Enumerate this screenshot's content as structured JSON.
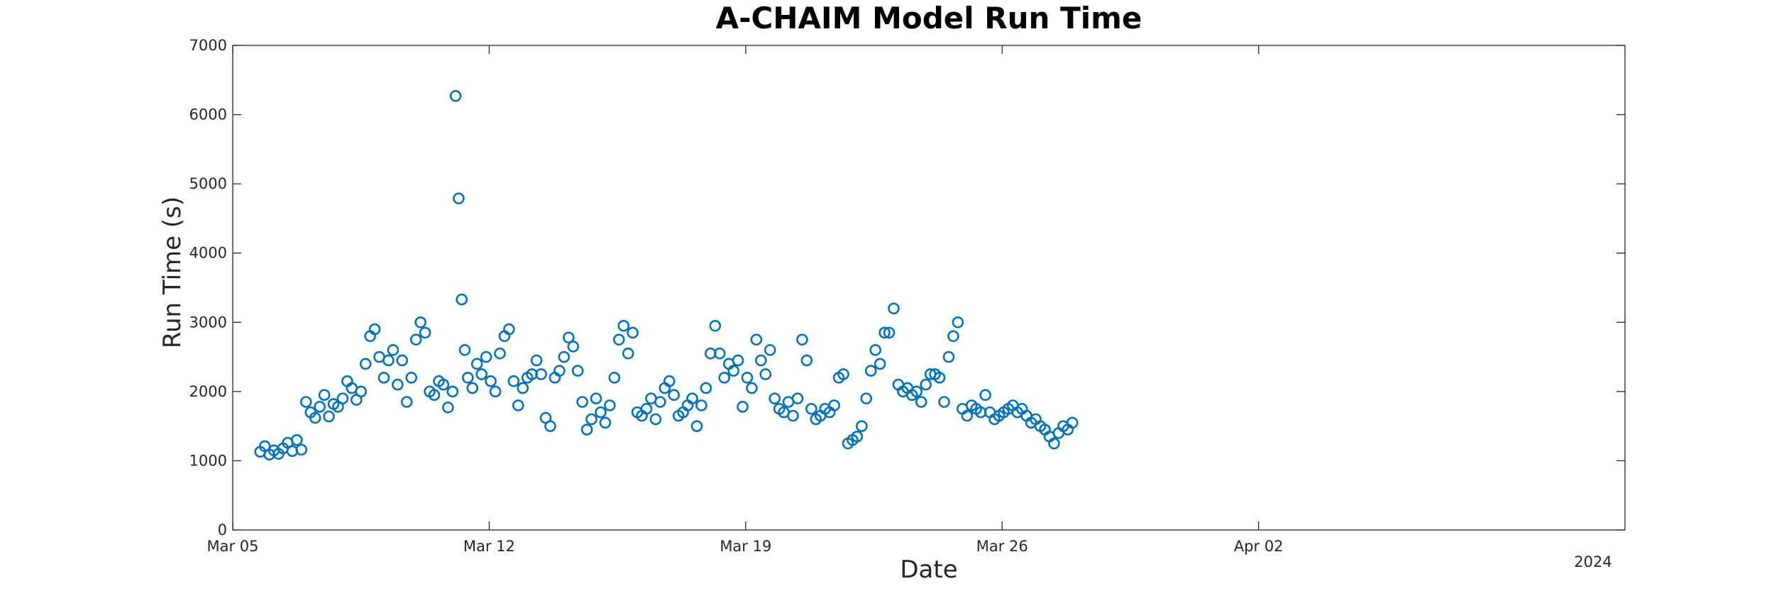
{
  "chart_data": {
    "type": "scatter",
    "title": "A-CHAIM Model Run Time",
    "xlabel": "Date",
    "ylabel": "Run Time (s)",
    "x_axis_secondary_label": "2024",
    "x_axis_type": "date",
    "xlim": [
      "2024-03-05",
      "2024-04-12"
    ],
    "ylim": [
      0,
      7000
    ],
    "x_ticks": [
      {
        "date": "2024-03-05",
        "label": "Mar 05"
      },
      {
        "date": "2024-03-12",
        "label": "Mar 12"
      },
      {
        "date": "2024-03-19",
        "label": "Mar 19"
      },
      {
        "date": "2024-03-26",
        "label": "Mar 26"
      },
      {
        "date": "2024-04-02",
        "label": "Apr 02"
      }
    ],
    "y_ticks": [
      0,
      1000,
      2000,
      3000,
      4000,
      5000,
      6000,
      7000
    ],
    "grid": false,
    "marker": "open-circle",
    "color": "#0072BD",
    "series": [
      {
        "points": [
          [
            "2024-03-05 18:00",
            1130
          ],
          [
            "2024-03-05 21:00",
            1210
          ],
          [
            "2024-03-06 00:00",
            1090
          ],
          [
            "2024-03-06 03:00",
            1150
          ],
          [
            "2024-03-06 06:00",
            1100
          ],
          [
            "2024-03-06 09:00",
            1180
          ],
          [
            "2024-03-06 12:00",
            1260
          ],
          [
            "2024-03-06 15:00",
            1140
          ],
          [
            "2024-03-06 18:00",
            1300
          ],
          [
            "2024-03-06 21:00",
            1160
          ],
          [
            "2024-03-07 00:00",
            1850
          ],
          [
            "2024-03-07 03:00",
            1700
          ],
          [
            "2024-03-07 06:00",
            1620
          ],
          [
            "2024-03-07 09:00",
            1780
          ],
          [
            "2024-03-07 12:00",
            1950
          ],
          [
            "2024-03-07 15:00",
            1640
          ],
          [
            "2024-03-07 18:00",
            1820
          ],
          [
            "2024-03-07 21:00",
            1780
          ],
          [
            "2024-03-08 00:00",
            1900
          ],
          [
            "2024-03-08 03:00",
            2150
          ],
          [
            "2024-03-08 06:00",
            2050
          ],
          [
            "2024-03-08 09:00",
            1880
          ],
          [
            "2024-03-08 12:00",
            2000
          ],
          [
            "2024-03-08 15:00",
            2400
          ],
          [
            "2024-03-08 18:00",
            2800
          ],
          [
            "2024-03-08 21:00",
            2900
          ],
          [
            "2024-03-09 00:00",
            2500
          ],
          [
            "2024-03-09 03:00",
            2200
          ],
          [
            "2024-03-09 06:00",
            2450
          ],
          [
            "2024-03-09 09:00",
            2600
          ],
          [
            "2024-03-09 12:00",
            2100
          ],
          [
            "2024-03-09 15:00",
            2450
          ],
          [
            "2024-03-09 18:00",
            1850
          ],
          [
            "2024-03-09 21:00",
            2200
          ],
          [
            "2024-03-10 00:00",
            2750
          ],
          [
            "2024-03-10 03:00",
            3000
          ],
          [
            "2024-03-10 06:00",
            2850
          ],
          [
            "2024-03-10 09:00",
            2000
          ],
          [
            "2024-03-10 12:00",
            1950
          ],
          [
            "2024-03-10 15:00",
            2150
          ],
          [
            "2024-03-10 18:00",
            2100
          ],
          [
            "2024-03-10 21:00",
            1770
          ],
          [
            "2024-03-11 00:00",
            2000
          ],
          [
            "2024-03-11 02:00",
            6270
          ],
          [
            "2024-03-11 04:00",
            4790
          ],
          [
            "2024-03-11 06:00",
            3330
          ],
          [
            "2024-03-11 08:00",
            2600
          ],
          [
            "2024-03-11 10:00",
            2200
          ],
          [
            "2024-03-11 13:00",
            2050
          ],
          [
            "2024-03-11 16:00",
            2400
          ],
          [
            "2024-03-11 19:00",
            2250
          ],
          [
            "2024-03-11 22:00",
            2500
          ],
          [
            "2024-03-12 01:00",
            2150
          ],
          [
            "2024-03-12 04:00",
            2000
          ],
          [
            "2024-03-12 07:00",
            2550
          ],
          [
            "2024-03-12 10:00",
            2800
          ],
          [
            "2024-03-12 13:00",
            2900
          ],
          [
            "2024-03-12 16:00",
            2150
          ],
          [
            "2024-03-12 19:00",
            1800
          ],
          [
            "2024-03-12 22:00",
            2050
          ],
          [
            "2024-03-13 01:00",
            2200
          ],
          [
            "2024-03-13 04:00",
            2250
          ],
          [
            "2024-03-13 07:00",
            2450
          ],
          [
            "2024-03-13 10:00",
            2250
          ],
          [
            "2024-03-13 13:00",
            1620
          ],
          [
            "2024-03-13 16:00",
            1500
          ],
          [
            "2024-03-13 19:00",
            2200
          ],
          [
            "2024-03-13 22:00",
            2300
          ],
          [
            "2024-03-14 01:00",
            2500
          ],
          [
            "2024-03-14 04:00",
            2780
          ],
          [
            "2024-03-14 07:00",
            2650
          ],
          [
            "2024-03-14 10:00",
            2300
          ],
          [
            "2024-03-14 13:00",
            1850
          ],
          [
            "2024-03-14 16:00",
            1450
          ],
          [
            "2024-03-14 19:00",
            1600
          ],
          [
            "2024-03-14 22:00",
            1900
          ],
          [
            "2024-03-15 01:00",
            1700
          ],
          [
            "2024-03-15 04:00",
            1550
          ],
          [
            "2024-03-15 07:00",
            1800
          ],
          [
            "2024-03-15 10:00",
            2200
          ],
          [
            "2024-03-15 13:00",
            2750
          ],
          [
            "2024-03-15 16:00",
            2950
          ],
          [
            "2024-03-15 19:00",
            2550
          ],
          [
            "2024-03-15 22:00",
            2850
          ],
          [
            "2024-03-16 01:00",
            1700
          ],
          [
            "2024-03-16 04:00",
            1650
          ],
          [
            "2024-03-16 07:00",
            1750
          ],
          [
            "2024-03-16 10:00",
            1900
          ],
          [
            "2024-03-16 13:00",
            1600
          ],
          [
            "2024-03-16 16:00",
            1850
          ],
          [
            "2024-03-16 19:00",
            2050
          ],
          [
            "2024-03-16 22:00",
            2150
          ],
          [
            "2024-03-17 01:00",
            1950
          ],
          [
            "2024-03-17 04:00",
            1650
          ],
          [
            "2024-03-17 07:00",
            1700
          ],
          [
            "2024-03-17 10:00",
            1800
          ],
          [
            "2024-03-17 13:00",
            1900
          ],
          [
            "2024-03-17 16:00",
            1500
          ],
          [
            "2024-03-17 19:00",
            1800
          ],
          [
            "2024-03-17 22:00",
            2050
          ],
          [
            "2024-03-18 01:00",
            2550
          ],
          [
            "2024-03-18 04:00",
            2950
          ],
          [
            "2024-03-18 07:00",
            2550
          ],
          [
            "2024-03-18 10:00",
            2200
          ],
          [
            "2024-03-18 13:00",
            2400
          ],
          [
            "2024-03-18 16:00",
            2300
          ],
          [
            "2024-03-18 19:00",
            2450
          ],
          [
            "2024-03-18 22:00",
            1780
          ],
          [
            "2024-03-19 01:00",
            2200
          ],
          [
            "2024-03-19 04:00",
            2050
          ],
          [
            "2024-03-19 07:00",
            2750
          ],
          [
            "2024-03-19 10:00",
            2450
          ],
          [
            "2024-03-19 13:00",
            2250
          ],
          [
            "2024-03-19 16:00",
            2600
          ],
          [
            "2024-03-19 19:00",
            1900
          ],
          [
            "2024-03-19 22:00",
            1750
          ],
          [
            "2024-03-20 01:00",
            1700
          ],
          [
            "2024-03-20 04:00",
            1850
          ],
          [
            "2024-03-20 07:00",
            1650
          ],
          [
            "2024-03-20 10:00",
            1900
          ],
          [
            "2024-03-20 13:00",
            2750
          ],
          [
            "2024-03-20 16:00",
            2450
          ],
          [
            "2024-03-20 19:00",
            1750
          ],
          [
            "2024-03-20 22:00",
            1600
          ],
          [
            "2024-03-21 01:00",
            1650
          ],
          [
            "2024-03-21 04:00",
            1750
          ],
          [
            "2024-03-21 07:00",
            1700
          ],
          [
            "2024-03-21 10:00",
            1800
          ],
          [
            "2024-03-21 13:00",
            2200
          ],
          [
            "2024-03-21 16:00",
            2250
          ],
          [
            "2024-03-21 19:00",
            1250
          ],
          [
            "2024-03-21 22:00",
            1300
          ],
          [
            "2024-03-22 01:00",
            1350
          ],
          [
            "2024-03-22 04:00",
            1500
          ],
          [
            "2024-03-22 07:00",
            1900
          ],
          [
            "2024-03-22 10:00",
            2300
          ],
          [
            "2024-03-22 13:00",
            2600
          ],
          [
            "2024-03-22 16:00",
            2400
          ],
          [
            "2024-03-22 19:00",
            2850
          ],
          [
            "2024-03-22 22:00",
            2850
          ],
          [
            "2024-03-23 01:00",
            3200
          ],
          [
            "2024-03-23 04:00",
            2100
          ],
          [
            "2024-03-23 07:00",
            2000
          ],
          [
            "2024-03-23 10:00",
            2050
          ],
          [
            "2024-03-23 13:00",
            1950
          ],
          [
            "2024-03-23 16:00",
            2000
          ],
          [
            "2024-03-23 19:00",
            1850
          ],
          [
            "2024-03-23 22:00",
            2100
          ],
          [
            "2024-03-24 01:00",
            2250
          ],
          [
            "2024-03-24 04:00",
            2250
          ],
          [
            "2024-03-24 07:00",
            2200
          ],
          [
            "2024-03-24 10:00",
            1850
          ],
          [
            "2024-03-24 13:00",
            2500
          ],
          [
            "2024-03-24 16:00",
            2800
          ],
          [
            "2024-03-24 19:00",
            3000
          ],
          [
            "2024-03-24 22:00",
            1750
          ],
          [
            "2024-03-25 01:00",
            1650
          ],
          [
            "2024-03-25 04:00",
            1800
          ],
          [
            "2024-03-25 07:00",
            1750
          ],
          [
            "2024-03-25 10:00",
            1700
          ],
          [
            "2024-03-25 13:00",
            1950
          ],
          [
            "2024-03-25 16:00",
            1700
          ],
          [
            "2024-03-25 19:00",
            1600
          ],
          [
            "2024-03-25 22:00",
            1650
          ],
          [
            "2024-03-26 01:00",
            1700
          ],
          [
            "2024-03-26 04:00",
            1750
          ],
          [
            "2024-03-26 07:00",
            1800
          ],
          [
            "2024-03-26 10:00",
            1700
          ],
          [
            "2024-03-26 13:00",
            1750
          ],
          [
            "2024-03-26 16:00",
            1650
          ],
          [
            "2024-03-26 19:00",
            1550
          ],
          [
            "2024-03-26 22:00",
            1600
          ],
          [
            "2024-03-27 01:00",
            1500
          ],
          [
            "2024-03-27 04:00",
            1450
          ],
          [
            "2024-03-27 07:00",
            1350
          ],
          [
            "2024-03-27 10:00",
            1250
          ],
          [
            "2024-03-27 13:00",
            1400
          ],
          [
            "2024-03-27 16:00",
            1500
          ],
          [
            "2024-03-27 19:00",
            1450
          ],
          [
            "2024-03-27 22:00",
            1550
          ]
        ]
      }
    ]
  }
}
